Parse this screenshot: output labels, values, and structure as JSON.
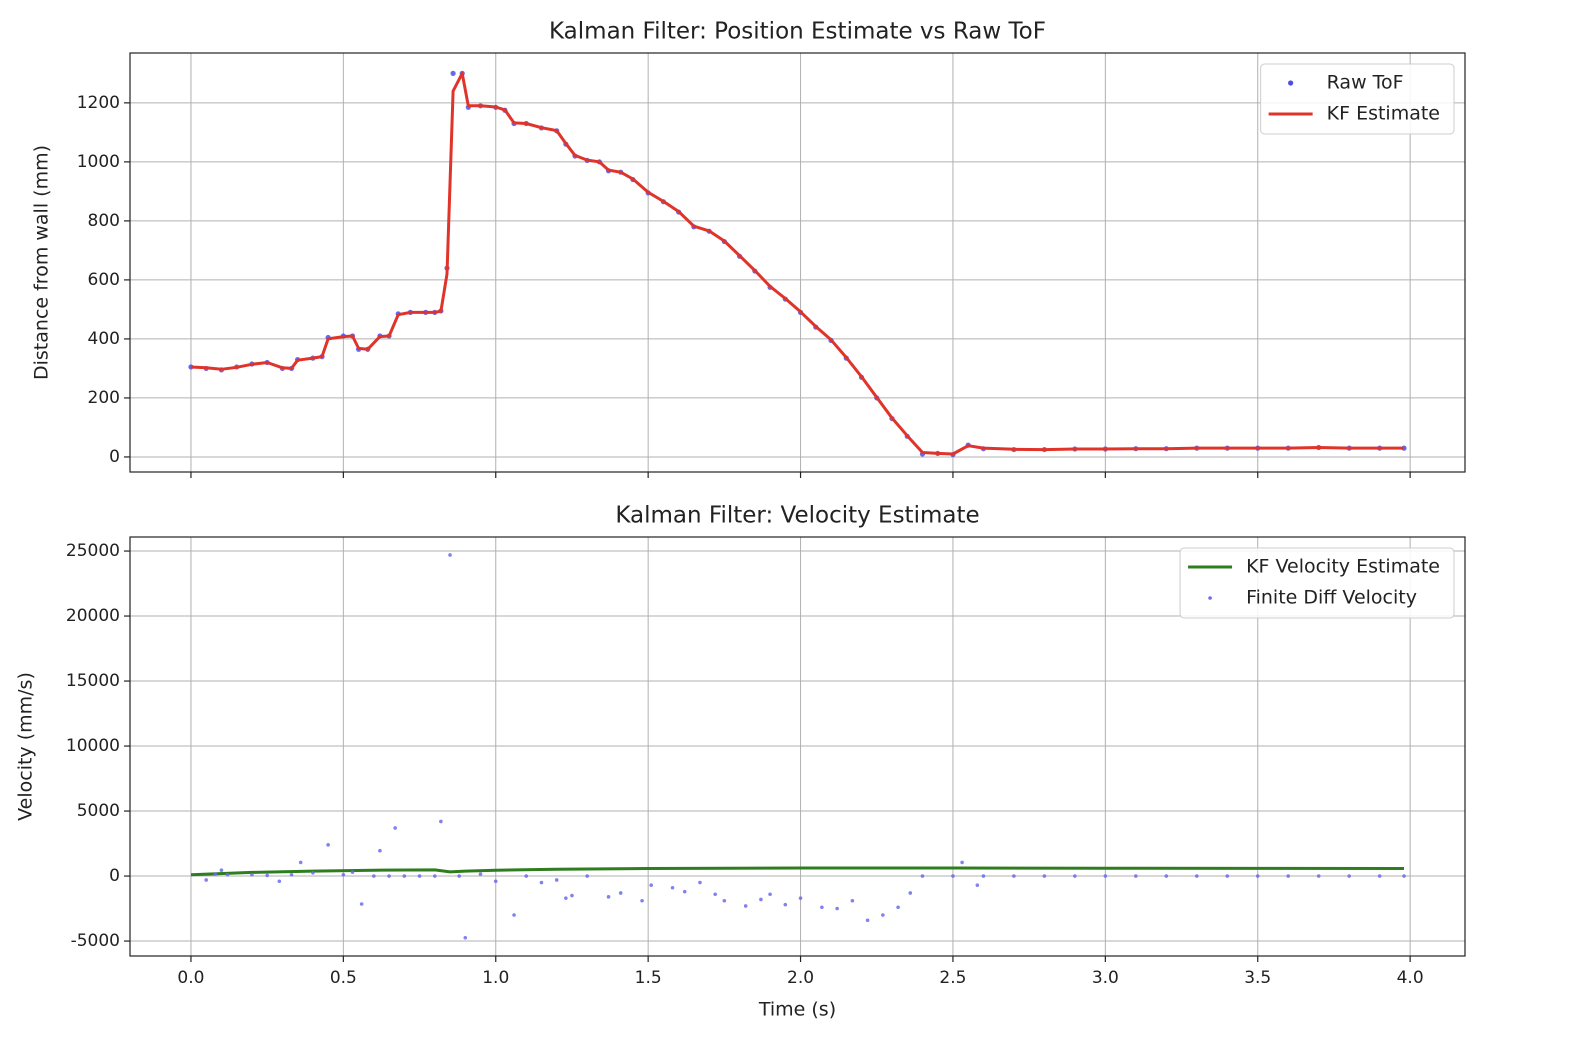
{
  "chart_data": [
    {
      "type": "line",
      "title": "Kalman Filter: Position Estimate vs Raw ToF",
      "ylabel": "Distance from wall (mm)",
      "xlim": [
        -0.2,
        4.18
      ],
      "ylim": [
        -51,
        1369
      ],
      "xticks": [
        0,
        0.5,
        1,
        1.5,
        2,
        2.5,
        3,
        3.5,
        4
      ],
      "yticks": [
        0,
        200,
        400,
        600,
        800,
        1000,
        1200
      ],
      "grid": true,
      "legend": "upper right",
      "x": [
        0.0,
        0.05,
        0.1,
        0.15,
        0.2,
        0.25,
        0.3,
        0.33,
        0.35,
        0.4,
        0.43,
        0.45,
        0.5,
        0.53,
        0.55,
        0.58,
        0.62,
        0.65,
        0.68,
        0.72,
        0.77,
        0.8,
        0.82,
        0.84,
        0.86,
        0.89,
        0.91,
        0.95,
        1.0,
        1.03,
        1.06,
        1.1,
        1.15,
        1.2,
        1.23,
        1.26,
        1.3,
        1.34,
        1.37,
        1.41,
        1.45,
        1.5,
        1.55,
        1.6,
        1.65,
        1.7,
        1.75,
        1.8,
        1.85,
        1.9,
        1.95,
        2.0,
        2.05,
        2.1,
        2.15,
        2.2,
        2.25,
        2.3,
        2.35,
        2.4,
        2.45,
        2.5,
        2.55,
        2.6,
        2.7,
        2.8,
        2.9,
        3.0,
        3.1,
        3.2,
        3.3,
        3.4,
        3.5,
        3.6,
        3.7,
        3.8,
        3.9,
        3.98
      ],
      "series": [
        {
          "name": "Raw ToF",
          "color": "#4f4fe8",
          "mode": "markers",
          "values": [
            305,
            300,
            295,
            305,
            315,
            320,
            300,
            300,
            330,
            335,
            340,
            405,
            410,
            410,
            365,
            365,
            410,
            410,
            485,
            490,
            490,
            490,
            495,
            640,
            1300,
            1300,
            1185,
            1190,
            1185,
            1175,
            1130,
            1130,
            1115,
            1105,
            1060,
            1020,
            1005,
            1000,
            970,
            965,
            940,
            895,
            865,
            830,
            780,
            765,
            730,
            680,
            630,
            575,
            535,
            490,
            440,
            395,
            335,
            270,
            200,
            130,
            70,
            10,
            12,
            8,
            40,
            28,
            25,
            25,
            27,
            27,
            28,
            28,
            30,
            30,
            30,
            30,
            32,
            30,
            30,
            30
          ]
        },
        {
          "name": "KF Estimate",
          "color": "#e0342a",
          "mode": "line",
          "values": [
            305,
            302,
            297,
            304,
            314,
            320,
            302,
            300,
            328,
            335,
            340,
            400,
            408,
            410,
            368,
            365,
            408,
            410,
            482,
            490,
            490,
            490,
            494,
            620,
            1240,
            1300,
            1190,
            1190,
            1186,
            1176,
            1132,
            1130,
            1116,
            1106,
            1062,
            1022,
            1006,
            1000,
            972,
            965,
            942,
            897,
            866,
            832,
            782,
            766,
            732,
            682,
            632,
            578,
            537,
            492,
            442,
            397,
            337,
            272,
            202,
            132,
            72,
            15,
            12,
            10,
            38,
            30,
            26,
            25,
            27,
            27,
            28,
            28,
            30,
            30,
            30,
            30,
            32,
            30,
            30,
            30
          ]
        }
      ]
    },
    {
      "type": "line",
      "title": "Kalman Filter: Velocity Estimate",
      "xlabel": "Time (s)",
      "ylabel": "Velocity (mm/s)",
      "xlim": [
        -0.2,
        4.18
      ],
      "ylim": [
        -6150,
        26080
      ],
      "xticks": [
        {
          "value": 0,
          "label": "0.0"
        },
        {
          "value": 0.5,
          "label": "0.5"
        },
        {
          "value": 1,
          "label": "1.0"
        },
        {
          "value": 1.5,
          "label": "1.5"
        },
        {
          "value": 2,
          "label": "2.0"
        },
        {
          "value": 2.5,
          "label": "2.5"
        },
        {
          "value": 3,
          "label": "3.0"
        },
        {
          "value": 3.5,
          "label": "3.5"
        },
        {
          "value": 4,
          "label": "4.0"
        }
      ],
      "yticks": [
        -5000,
        0,
        5000,
        10000,
        15000,
        20000,
        25000
      ],
      "grid": true,
      "legend": "upper right",
      "series": [
        {
          "name": "KF Velocity Estimate",
          "color": "#2e7d1e",
          "mode": "line",
          "x": [
            0,
            0.2,
            0.4,
            0.6,
            0.8,
            0.85,
            0.9,
            1.0,
            1.2,
            1.5,
            2.0,
            2.5,
            3.0,
            3.5,
            3.98
          ],
          "values": [
            100,
            280,
            380,
            450,
            470,
            320,
            380,
            450,
            520,
            580,
            620,
            620,
            600,
            590,
            580
          ]
        },
        {
          "name": "Finite Diff Velocity",
          "color": "#6b6bf0",
          "mode": "markers",
          "x": [
            0.05,
            0.08,
            0.1,
            0.12,
            0.2,
            0.25,
            0.29,
            0.33,
            0.36,
            0.4,
            0.45,
            0.5,
            0.53,
            0.56,
            0.6,
            0.62,
            0.65,
            0.67,
            0.7,
            0.75,
            0.8,
            0.82,
            0.85,
            0.88,
            0.9,
            0.95,
            1.0,
            1.06,
            1.1,
            1.15,
            1.2,
            1.23,
            1.25,
            1.3,
            1.37,
            1.41,
            1.48,
            1.51,
            1.58,
            1.62,
            1.67,
            1.72,
            1.75,
            1.82,
            1.87,
            1.9,
            1.95,
            2.0,
            2.07,
            2.12,
            2.17,
            2.22,
            2.27,
            2.32,
            2.36,
            2.4,
            2.5,
            2.53,
            2.58,
            2.6,
            2.7,
            2.8,
            2.9,
            3.0,
            3.1,
            3.2,
            3.3,
            3.4,
            3.5,
            3.6,
            3.7,
            3.8,
            3.9,
            3.98
          ],
          "values": [
            -300,
            150,
            450,
            100,
            100,
            50,
            -400,
            100,
            1050,
            250,
            2400,
            100,
            300,
            -2150,
            0,
            1950,
            0,
            3700,
            0,
            0,
            0,
            4200,
            24700,
            0,
            -4750,
            150,
            -400,
            -3000,
            0,
            -500,
            -300,
            -1700,
            -1500,
            0,
            -1600,
            -1300,
            -1900,
            -700,
            -900,
            -1200,
            -500,
            -1400,
            -1900,
            -2300,
            -1800,
            -1400,
            -2200,
            -1700,
            -2400,
            -2500,
            -1900,
            -3400,
            -3000,
            -2400,
            -1300,
            0,
            0,
            1050,
            -700,
            0,
            0,
            0,
            0,
            0,
            0,
            0,
            0,
            0,
            0,
            0,
            0,
            0,
            0,
            0
          ]
        }
      ]
    }
  ]
}
